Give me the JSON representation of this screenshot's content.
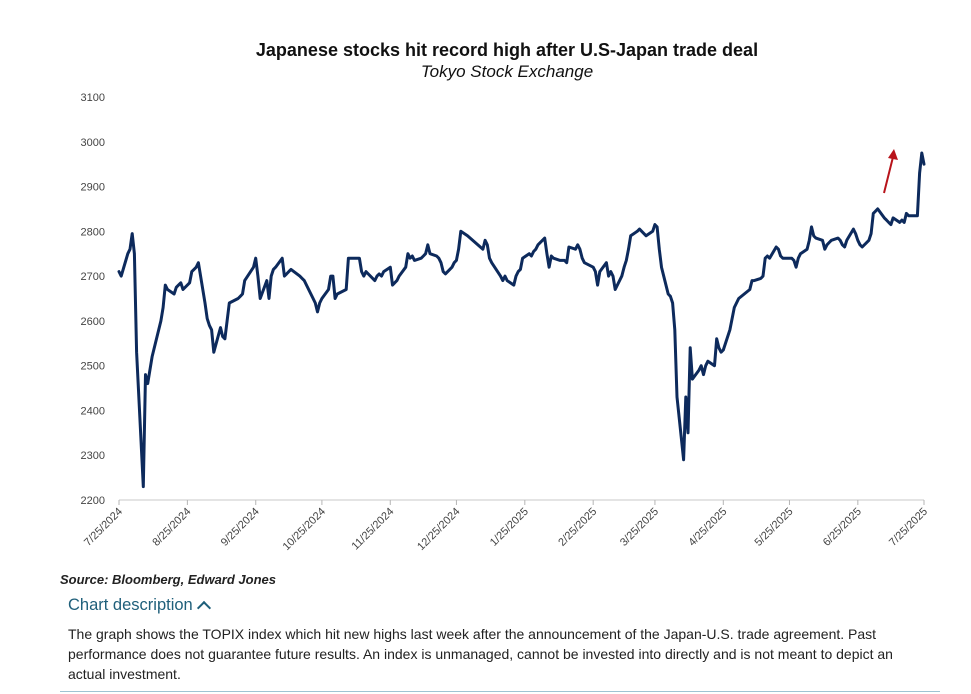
{
  "colors": {
    "line": "#0d2a5c",
    "arrow": "#b8141b",
    "accent": "#1f5f7a"
  },
  "icons": {
    "toggle": "chevron-up-icon",
    "annotation": "arrow-up-icon"
  },
  "source": "Source: Bloomberg, Edward Jones",
  "description": {
    "toggle_label": "Chart description",
    "expanded": true,
    "text": "The graph shows the TOPIX index which hit new highs last week after the announcement of the Japan-U.S. trade agreement. Past performance does not guarantee future results. An index is unmanaged, cannot be invested into directly and is not meant to depict an actual investment."
  },
  "chart_data": {
    "type": "line",
    "title": "Japanese stocks hit record high after U.S-Japan trade deal",
    "subtitle": "Tokyo Stock Exchange",
    "xlabel": "",
    "ylabel": "",
    "ylim": [
      2200,
      3100
    ],
    "yticks": [
      2200,
      2300,
      2400,
      2500,
      2600,
      2700,
      2800,
      2900,
      3000,
      3100
    ],
    "xlim": [
      "2024-07-25",
      "2025-07-25"
    ],
    "xticks": [
      "7/25/2024",
      "8/25/2024",
      "9/25/2024",
      "10/25/2024",
      "11/25/2024",
      "12/25/2024",
      "1/25/2025",
      "2/25/2025",
      "3/25/2025",
      "4/25/2025",
      "5/25/2025",
      "6/25/2025",
      "7/25/2025"
    ],
    "grid": false,
    "legend": "none",
    "series": [
      {
        "points": [
          [
            "2024-07-25",
            2710
          ],
          [
            "2024-07-26",
            2700
          ],
          [
            "2024-07-29",
            2750
          ],
          [
            "2024-07-30",
            2760
          ],
          [
            "2024-07-31",
            2795
          ],
          [
            "2024-08-01",
            2750
          ],
          [
            "2024-08-02",
            2530
          ],
          [
            "2024-08-05",
            2230
          ],
          [
            "2024-08-06",
            2480
          ],
          [
            "2024-08-07",
            2460
          ],
          [
            "2024-08-08",
            2490
          ],
          [
            "2024-08-09",
            2520
          ],
          [
            "2024-08-13",
            2600
          ],
          [
            "2024-08-14",
            2630
          ],
          [
            "2024-08-15",
            2680
          ],
          [
            "2024-08-16",
            2670
          ],
          [
            "2024-08-19",
            2660
          ],
          [
            "2024-08-20",
            2675
          ],
          [
            "2024-08-21",
            2680
          ],
          [
            "2024-08-22",
            2685
          ],
          [
            "2024-08-23",
            2670
          ],
          [
            "2024-08-26",
            2685
          ],
          [
            "2024-08-27",
            2710
          ],
          [
            "2024-08-28",
            2715
          ],
          [
            "2024-08-29",
            2720
          ],
          [
            "2024-08-30",
            2730
          ],
          [
            "2024-09-02",
            2640
          ],
          [
            "2024-09-03",
            2605
          ],
          [
            "2024-09-04",
            2590
          ],
          [
            "2024-09-05",
            2580
          ],
          [
            "2024-09-06",
            2530
          ],
          [
            "2024-09-09",
            2585
          ],
          [
            "2024-09-10",
            2565
          ],
          [
            "2024-09-11",
            2560
          ],
          [
            "2024-09-12",
            2600
          ],
          [
            "2024-09-13",
            2640
          ],
          [
            "2024-09-17",
            2650
          ],
          [
            "2024-09-18",
            2655
          ],
          [
            "2024-09-19",
            2660
          ],
          [
            "2024-09-20",
            2690
          ],
          [
            "2024-09-24",
            2720
          ],
          [
            "2024-09-25",
            2740
          ],
          [
            "2024-09-26",
            2700
          ],
          [
            "2024-09-27",
            2650
          ],
          [
            "2024-09-30",
            2690
          ],
          [
            "2024-10-01",
            2650
          ],
          [
            "2024-10-02",
            2700
          ],
          [
            "2024-10-03",
            2715
          ],
          [
            "2024-10-04",
            2720
          ],
          [
            "2024-10-07",
            2740
          ],
          [
            "2024-10-08",
            2700
          ],
          [
            "2024-10-09",
            2705
          ],
          [
            "2024-10-10",
            2710
          ],
          [
            "2024-10-11",
            2715
          ],
          [
            "2024-10-15",
            2700
          ],
          [
            "2024-10-16",
            2695
          ],
          [
            "2024-10-17",
            2690
          ],
          [
            "2024-10-18",
            2680
          ],
          [
            "2024-10-21",
            2650
          ],
          [
            "2024-10-22",
            2640
          ],
          [
            "2024-10-23",
            2620
          ],
          [
            "2024-10-24",
            2640
          ],
          [
            "2024-10-25",
            2650
          ],
          [
            "2024-10-28",
            2670
          ],
          [
            "2024-10-29",
            2700
          ],
          [
            "2024-10-30",
            2700
          ],
          [
            "2024-10-31",
            2650
          ],
          [
            "2024-11-01",
            2660
          ],
          [
            "2024-11-05",
            2670
          ],
          [
            "2024-11-06",
            2740
          ],
          [
            "2024-11-07",
            2740
          ],
          [
            "2024-11-08",
            2740
          ],
          [
            "2024-11-11",
            2740
          ],
          [
            "2024-11-12",
            2710
          ],
          [
            "2024-11-13",
            2700
          ],
          [
            "2024-11-14",
            2710
          ],
          [
            "2024-11-15",
            2705
          ],
          [
            "2024-11-18",
            2690
          ],
          [
            "2024-11-19",
            2700
          ],
          [
            "2024-11-20",
            2705
          ],
          [
            "2024-11-21",
            2700
          ],
          [
            "2024-11-22",
            2710
          ],
          [
            "2024-11-25",
            2720
          ],
          [
            "2024-11-26",
            2680
          ],
          [
            "2024-11-27",
            2685
          ],
          [
            "2024-11-28",
            2690
          ],
          [
            "2024-11-29",
            2700
          ],
          [
            "2024-12-02",
            2720
          ],
          [
            "2024-12-03",
            2750
          ],
          [
            "2024-12-04",
            2740
          ],
          [
            "2024-12-05",
            2745
          ],
          [
            "2024-12-06",
            2735
          ],
          [
            "2024-12-09",
            2740
          ],
          [
            "2024-12-10",
            2745
          ],
          [
            "2024-12-11",
            2750
          ],
          [
            "2024-12-12",
            2770
          ],
          [
            "2024-12-13",
            2750
          ],
          [
            "2024-12-16",
            2745
          ],
          [
            "2024-12-17",
            2740
          ],
          [
            "2024-12-18",
            2730
          ],
          [
            "2024-12-19",
            2710
          ],
          [
            "2024-12-20",
            2705
          ],
          [
            "2024-12-23",
            2720
          ],
          [
            "2024-12-24",
            2730
          ],
          [
            "2024-12-25",
            2735
          ],
          [
            "2024-12-26",
            2760
          ],
          [
            "2024-12-27",
            2800
          ],
          [
            "2024-12-30",
            2790
          ],
          [
            "2025-01-06",
            2760
          ],
          [
            "2025-01-07",
            2780
          ],
          [
            "2025-01-08",
            2770
          ],
          [
            "2025-01-09",
            2740
          ],
          [
            "2025-01-10",
            2730
          ],
          [
            "2025-01-14",
            2700
          ],
          [
            "2025-01-15",
            2690
          ],
          [
            "2025-01-16",
            2700
          ],
          [
            "2025-01-17",
            2690
          ],
          [
            "2025-01-20",
            2680
          ],
          [
            "2025-01-21",
            2700
          ],
          [
            "2025-01-22",
            2710
          ],
          [
            "2025-01-23",
            2715
          ],
          [
            "2025-01-24",
            2740
          ],
          [
            "2025-01-27",
            2750
          ],
          [
            "2025-01-28",
            2745
          ],
          [
            "2025-01-29",
            2755
          ],
          [
            "2025-01-30",
            2760
          ],
          [
            "2025-01-31",
            2770
          ],
          [
            "2025-02-03",
            2785
          ],
          [
            "2025-02-04",
            2750
          ],
          [
            "2025-02-05",
            2720
          ],
          [
            "2025-02-06",
            2745
          ],
          [
            "2025-02-07",
            2740
          ],
          [
            "2025-02-10",
            2735
          ],
          [
            "2025-02-12",
            2735
          ],
          [
            "2025-02-13",
            2730
          ],
          [
            "2025-02-14",
            2765
          ],
          [
            "2025-02-17",
            2760
          ],
          [
            "2025-02-18",
            2770
          ],
          [
            "2025-02-19",
            2760
          ],
          [
            "2025-02-20",
            2740
          ],
          [
            "2025-02-21",
            2730
          ],
          [
            "2025-02-25",
            2720
          ],
          [
            "2025-02-26",
            2710
          ],
          [
            "2025-02-27",
            2680
          ],
          [
            "2025-02-28",
            2710
          ],
          [
            "2025-03-03",
            2730
          ],
          [
            "2025-03-04",
            2700
          ],
          [
            "2025-03-05",
            2710
          ],
          [
            "2025-03-06",
            2700
          ],
          [
            "2025-03-07",
            2670
          ],
          [
            "2025-03-10",
            2700
          ],
          [
            "2025-03-11",
            2720
          ],
          [
            "2025-03-12",
            2735
          ],
          [
            "2025-03-13",
            2760
          ],
          [
            "2025-03-14",
            2790
          ],
          [
            "2025-03-17",
            2800
          ],
          [
            "2025-03-18",
            2805
          ],
          [
            "2025-03-19",
            2800
          ],
          [
            "2025-03-21",
            2790
          ],
          [
            "2025-03-24",
            2800
          ],
          [
            "2025-03-25",
            2815
          ],
          [
            "2025-03-26",
            2810
          ],
          [
            "2025-03-27",
            2760
          ],
          [
            "2025-03-28",
            2720
          ],
          [
            "2025-03-31",
            2660
          ],
          [
            "2025-04-01",
            2655
          ],
          [
            "2025-04-02",
            2640
          ],
          [
            "2025-04-03",
            2580
          ],
          [
            "2025-04-04",
            2430
          ],
          [
            "2025-04-07",
            2290
          ],
          [
            "2025-04-08",
            2430
          ],
          [
            "2025-04-09",
            2350
          ],
          [
            "2025-04-10",
            2540
          ],
          [
            "2025-04-11",
            2470
          ],
          [
            "2025-04-14",
            2490
          ],
          [
            "2025-04-15",
            2500
          ],
          [
            "2025-04-16",
            2480
          ],
          [
            "2025-04-17",
            2500
          ],
          [
            "2025-04-18",
            2510
          ],
          [
            "2025-04-21",
            2500
          ],
          [
            "2025-04-22",
            2560
          ],
          [
            "2025-04-23",
            2540
          ],
          [
            "2025-04-24",
            2530
          ],
          [
            "2025-04-25",
            2535
          ],
          [
            "2025-04-28",
            2580
          ],
          [
            "2025-04-30",
            2630
          ],
          [
            "2025-05-01",
            2640
          ],
          [
            "2025-05-02",
            2650
          ],
          [
            "2025-05-07",
            2670
          ],
          [
            "2025-05-08",
            2690
          ],
          [
            "2025-05-09",
            2690
          ],
          [
            "2025-05-12",
            2695
          ],
          [
            "2025-05-13",
            2700
          ],
          [
            "2025-05-14",
            2740
          ],
          [
            "2025-05-15",
            2745
          ],
          [
            "2025-05-16",
            2740
          ],
          [
            "2025-05-19",
            2765
          ],
          [
            "2025-05-20",
            2760
          ],
          [
            "2025-05-21",
            2745
          ],
          [
            "2025-05-22",
            2740
          ],
          [
            "2025-05-23",
            2740
          ],
          [
            "2025-05-26",
            2740
          ],
          [
            "2025-05-27",
            2735
          ],
          [
            "2025-05-28",
            2720
          ],
          [
            "2025-05-29",
            2740
          ],
          [
            "2025-05-30",
            2750
          ],
          [
            "2025-06-02",
            2760
          ],
          [
            "2025-06-03",
            2780
          ],
          [
            "2025-06-04",
            2810
          ],
          [
            "2025-06-05",
            2790
          ],
          [
            "2025-06-06",
            2785
          ],
          [
            "2025-06-09",
            2780
          ],
          [
            "2025-06-10",
            2760
          ],
          [
            "2025-06-11",
            2770
          ],
          [
            "2025-06-12",
            2775
          ],
          [
            "2025-06-13",
            2780
          ],
          [
            "2025-06-16",
            2785
          ],
          [
            "2025-06-17",
            2780
          ],
          [
            "2025-06-18",
            2770
          ],
          [
            "2025-06-19",
            2765
          ],
          [
            "2025-06-20",
            2780
          ],
          [
            "2025-06-23",
            2805
          ],
          [
            "2025-06-24",
            2795
          ],
          [
            "2025-06-25",
            2780
          ],
          [
            "2025-06-26",
            2770
          ],
          [
            "2025-06-27",
            2765
          ],
          [
            "2025-06-30",
            2780
          ],
          [
            "2025-07-01",
            2795
          ],
          [
            "2025-07-02",
            2840
          ],
          [
            "2025-07-03",
            2845
          ],
          [
            "2025-07-04",
            2850
          ],
          [
            "2025-07-07",
            2830
          ],
          [
            "2025-07-08",
            2825
          ],
          [
            "2025-07-09",
            2820
          ],
          [
            "2025-07-10",
            2815
          ],
          [
            "2025-07-11",
            2830
          ],
          [
            "2025-07-14",
            2820
          ],
          [
            "2025-07-15",
            2825
          ],
          [
            "2025-07-16",
            2820
          ],
          [
            "2025-07-17",
            2840
          ],
          [
            "2025-07-18",
            2835
          ],
          [
            "2025-07-22",
            2835
          ],
          [
            "2025-07-23",
            2930
          ],
          [
            "2025-07-24",
            2975
          ],
          [
            "2025-07-25",
            2950
          ]
        ]
      }
    ]
  }
}
